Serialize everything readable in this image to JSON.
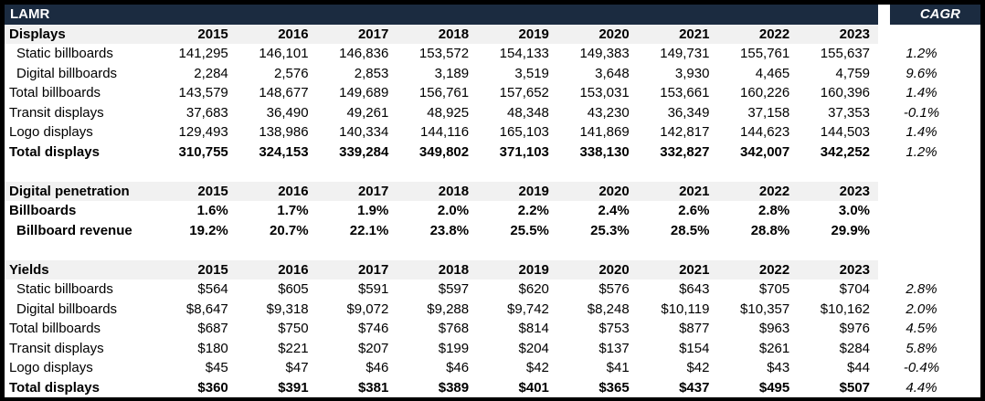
{
  "title": "LAMR",
  "cagr_header": "CAGR",
  "years": [
    "2015",
    "2016",
    "2017",
    "2018",
    "2019",
    "2020",
    "2021",
    "2022",
    "2023"
  ],
  "colors": {
    "navy": "#1b2b40",
    "row_header_bg": "#f1f1f1",
    "border": "#000000",
    "text": "#000000"
  },
  "sections": [
    {
      "label": "Displays",
      "rows": [
        {
          "label": "Static billboards",
          "indent": true,
          "bold": false,
          "values": [
            "141,295",
            "146,101",
            "146,836",
            "153,572",
            "154,133",
            "149,383",
            "149,731",
            "155,761",
            "155,637"
          ],
          "cagr": "1.2%"
        },
        {
          "label": "Digital billboards",
          "indent": true,
          "bold": false,
          "values": [
            "2,284",
            "2,576",
            "2,853",
            "3,189",
            "3,519",
            "3,648",
            "3,930",
            "4,465",
            "4,759"
          ],
          "cagr": "9.6%"
        },
        {
          "label": "Total billboards",
          "indent": false,
          "bold": false,
          "values": [
            "143,579",
            "148,677",
            "149,689",
            "156,761",
            "157,652",
            "153,031",
            "153,661",
            "160,226",
            "160,396"
          ],
          "cagr": "1.4%"
        },
        {
          "label": "Transit displays",
          "indent": false,
          "bold": false,
          "values": [
            "37,683",
            "36,490",
            "49,261",
            "48,925",
            "48,348",
            "43,230",
            "36,349",
            "37,158",
            "37,353"
          ],
          "cagr": "-0.1%"
        },
        {
          "label": "Logo displays",
          "indent": false,
          "bold": false,
          "values": [
            "129,493",
            "138,986",
            "140,334",
            "144,116",
            "165,103",
            "141,869",
            "142,817",
            "144,623",
            "144,503"
          ],
          "cagr": "1.4%"
        },
        {
          "label": "Total displays",
          "indent": false,
          "bold": true,
          "values": [
            "310,755",
            "324,153",
            "339,284",
            "349,802",
            "371,103",
            "338,130",
            "332,827",
            "342,007",
            "342,252"
          ],
          "cagr": "1.2%"
        }
      ]
    },
    {
      "label": "Digital penetration",
      "rows": [
        {
          "label": "Billboards",
          "indent": false,
          "bold": true,
          "values": [
            "1.6%",
            "1.7%",
            "1.9%",
            "2.0%",
            "2.2%",
            "2.4%",
            "2.6%",
            "2.8%",
            "3.0%"
          ],
          "cagr": ""
        },
        {
          "label": "Billboard revenue",
          "indent": true,
          "bold": true,
          "values": [
            "19.2%",
            "20.7%",
            "22.1%",
            "23.8%",
            "25.5%",
            "25.3%",
            "28.5%",
            "28.8%",
            "29.9%"
          ],
          "cagr": ""
        }
      ]
    },
    {
      "label": "Yields",
      "rows": [
        {
          "label": "Static billboards",
          "indent": true,
          "bold": false,
          "values": [
            "$564",
            "$605",
            "$591",
            "$597",
            "$620",
            "$576",
            "$643",
            "$705",
            "$704"
          ],
          "cagr": "2.8%"
        },
        {
          "label": "Digital billboards",
          "indent": true,
          "bold": false,
          "values": [
            "$8,647",
            "$9,318",
            "$9,072",
            "$9,288",
            "$9,742",
            "$8,248",
            "$10,119",
            "$10,357",
            "$10,162"
          ],
          "cagr": "2.0%"
        },
        {
          "label": "Total billboards",
          "indent": false,
          "bold": false,
          "values": [
            "$687",
            "$750",
            "$746",
            "$768",
            "$814",
            "$753",
            "$877",
            "$963",
            "$976"
          ],
          "cagr": "4.5%"
        },
        {
          "label": "Transit displays",
          "indent": false,
          "bold": false,
          "values": [
            "$180",
            "$221",
            "$207",
            "$199",
            "$204",
            "$137",
            "$154",
            "$261",
            "$284"
          ],
          "cagr": "5.8%"
        },
        {
          "label": "Logo displays",
          "indent": false,
          "bold": false,
          "values": [
            "$45",
            "$47",
            "$46",
            "$46",
            "$42",
            "$41",
            "$42",
            "$43",
            "$44"
          ],
          "cagr": "-0.4%"
        },
        {
          "label": "Total displays",
          "indent": false,
          "bold": true,
          "values": [
            "$360",
            "$391",
            "$381",
            "$389",
            "$401",
            "$365",
            "$437",
            "$495",
            "$507"
          ],
          "cagr": "4.4%"
        }
      ]
    }
  ]
}
